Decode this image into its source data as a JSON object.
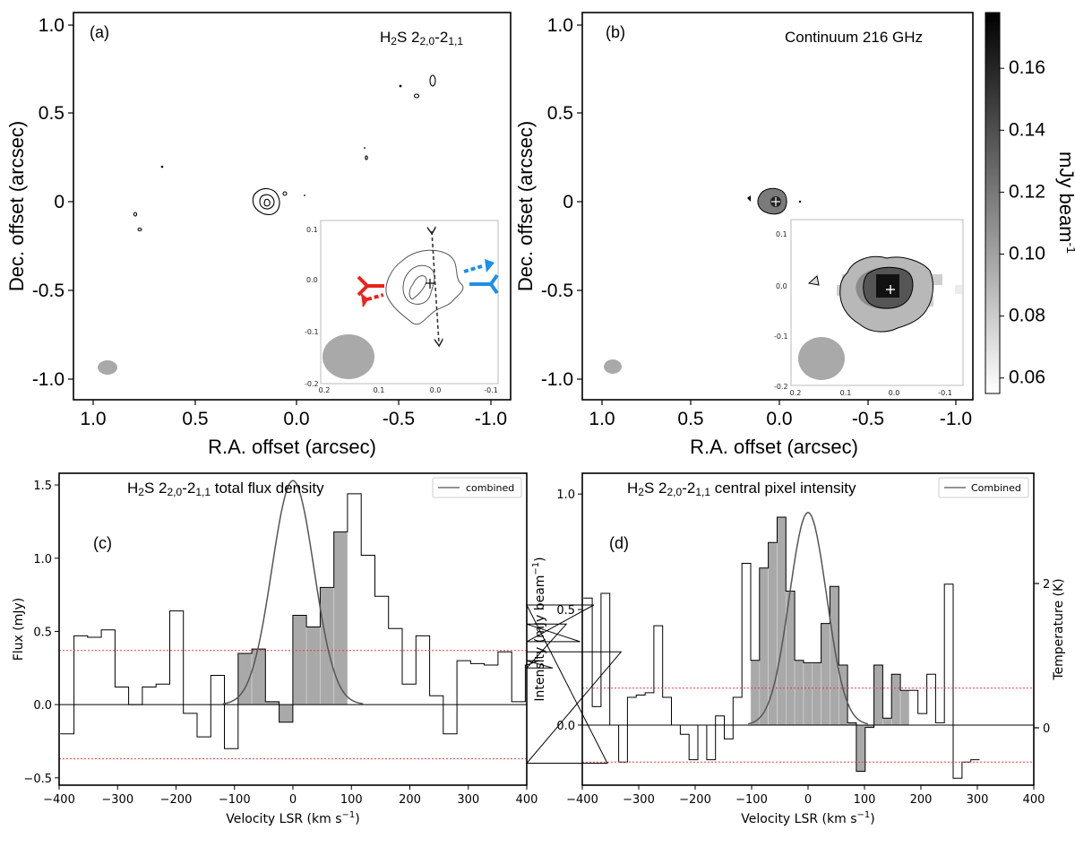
{
  "panels": {
    "a": {
      "label": "(a)",
      "title": {
        "main": "H",
        "sub1": "2",
        "main2": "S 2",
        "sub2": "2,0",
        "main3": "-2",
        "sub3": "1,1"
      },
      "xlabel": "R.A. offset (arcsec)",
      "ylabel": "Dec. offset (arcsec)",
      "xticks": [
        "1.0",
        "0.5",
        "0.0",
        "-0.5",
        "-1.0"
      ],
      "yticks": [
        "1.0",
        "0.5",
        "0",
        "-0.5",
        "-1.0"
      ],
      "inset_xticks": [
        "0.2",
        "0.1",
        "0.0",
        "-0.1"
      ],
      "inset_yticks": [
        "0.1",
        "0.0",
        "-0.1",
        "-0.2"
      ]
    },
    "b": {
      "label": "(b)",
      "title": "Continuum 216 GHz",
      "xlabel": "R.A. offset (arcsec)",
      "ylabel": "Dec. offset (arcsec)",
      "xticks": [
        "1.0",
        "0.5",
        "0.0",
        "-0.5",
        "-1.0"
      ],
      "yticks": [
        "1.0",
        "0.5",
        "0",
        "-0.5",
        "-1.0"
      ],
      "inset_xticks": [
        "0.2",
        "0.1",
        "0.0",
        "-0.1"
      ],
      "inset_yticks": [
        "0.1",
        "0.0",
        "-0.1",
        "-0.2"
      ],
      "colorbar": {
        "label_main": "mJy beam",
        "label_sup": "-1",
        "ticks": [
          "0.16",
          "0.14",
          "0.12",
          "0.10",
          "0.08",
          "0.06"
        ],
        "range": [
          0.055,
          0.178
        ]
      }
    },
    "c": {
      "label": "(c)",
      "title": {
        "main": "H",
        "sub1": "2",
        "main2": "S 2",
        "sub2": "2,0",
        "main3": "-2",
        "sub3": "1,1",
        "tail": " total flux density"
      },
      "xlabel": "Velocity LSR (km s",
      "xlabel_sup": "−1",
      "xlabel_tail": ")",
      "ylabel": "Flux (mJy)",
      "legend": "combined"
    },
    "d": {
      "label": "(d)",
      "title": {
        "main": "H",
        "sub1": "2",
        "main2": "S 2",
        "sub2": "2,0",
        "main3": "-2",
        "sub3": "1,1",
        "tail": " central pixel intensity"
      },
      "xlabel": "Velocity LSR (km s",
      "xlabel_sup": "−1",
      "xlabel_tail": ")",
      "ylabel": "Intensity (mJy beam",
      "ylabel_sup": "−1",
      "ylabel_tail": ")",
      "ylabel_right": "Temperature (K)",
      "right_ticks": [
        "2",
        "0"
      ],
      "legend": "Combined"
    }
  },
  "colors": {
    "noise_line": "#e8413c",
    "outflow_red": "#e8241b",
    "outflow_blue": "#1e8fe8",
    "fill": "#a9a9a9",
    "fit": "#555555"
  },
  "chart_data": [
    {
      "type": "bar",
      "panel": "c",
      "xlim": [
        -400,
        400
      ],
      "ylim": [
        -0.55,
        1.58
      ],
      "x_ticks": [
        "−400",
        "−300",
        "−200",
        "−100",
        "0",
        "100",
        "200",
        "300",
        "400"
      ],
      "y_ticks": [
        "−0.5",
        "0.0",
        "0.5",
        "1.0",
        "1.5"
      ],
      "bin_width": 23.4,
      "bin_start": -398,
      "values": [
        -0.2,
        0.47,
        0.46,
        0.51,
        0.12,
        0.0,
        0.12,
        0.14,
        0.64,
        -0.06,
        -0.22,
        0.2,
        -0.3,
        0.35,
        0.38,
        0.02,
        -0.12,
        0.61,
        0.53,
        0.8,
        1.18,
        1.44,
        1.02,
        0.74,
        0.52,
        0.14,
        0.47,
        0.06,
        -0.2,
        0.3,
        0.28,
        0.27,
        0.36,
        0.02,
        0.27,
        0.3,
        0.25,
        0.55,
        0.43,
        0.68,
        -0.4,
        0.36
      ],
      "filled_range": [
        -100,
        87
      ],
      "noise_levels": [
        0.37,
        -0.37
      ],
      "fit": {
        "name": "combined",
        "amplitude": 1.53,
        "center": 0,
        "sigma": 36
      }
    },
    {
      "type": "bar",
      "panel": "d",
      "xlim": [
        -400,
        400
      ],
      "ylim": [
        -0.26,
        1.09
      ],
      "x_ticks": [
        "−400",
        "−300",
        "−200",
        "−100",
        "0",
        "100",
        "200",
        "300",
        "400"
      ],
      "y_ticks": [
        "0.0",
        "0.5",
        "1.0"
      ],
      "bin_width": 15.6,
      "bin_start": -398,
      "values": [
        0.55,
        0.08,
        0.57,
        0.0,
        -0.16,
        0.12,
        0.13,
        0.14,
        0.43,
        0.12,
        0.0,
        -0.04,
        -0.15,
        0.0,
        -0.15,
        0.04,
        -0.06,
        0.12,
        0.7,
        0.28,
        0.68,
        0.79,
        0.9,
        0.58,
        0.28,
        0.27,
        0.27,
        0.44,
        0.6,
        0.26,
        0.01,
        -0.2,
        -0.01,
        0.26,
        0.03,
        0.22,
        0.15,
        0.15,
        0.05,
        0.22,
        0.01,
        0.61,
        -0.23,
        -0.16,
        -0.15
      ],
      "filled_range": [
        -100,
        172
      ],
      "noise_levels": [
        0.16,
        -0.16
      ],
      "fit": {
        "name": "Combined",
        "amplitude": 0.92,
        "center": 0,
        "sigma": 33
      }
    }
  ]
}
